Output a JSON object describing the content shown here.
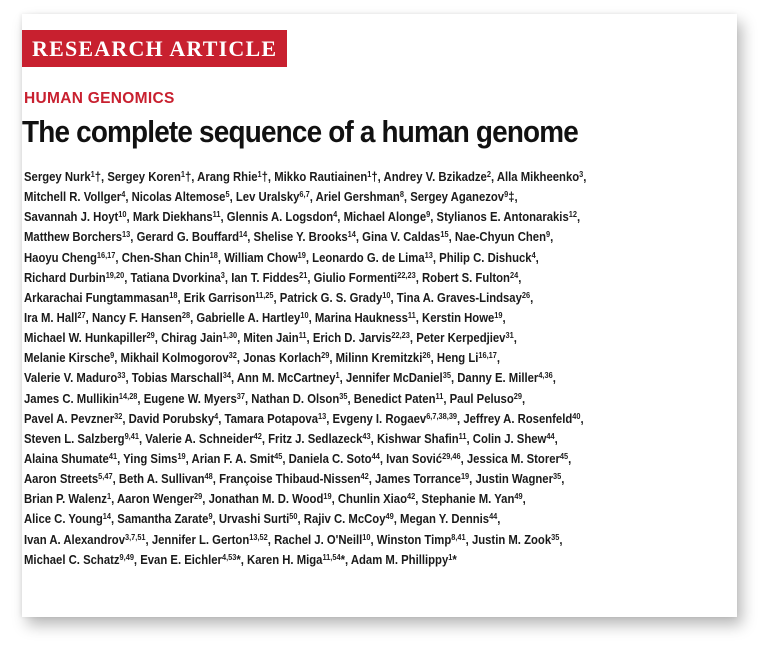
{
  "banner": "RESEARCH ARTICLE",
  "section": "HUMAN GENOMICS",
  "title": "The complete sequence of a human genome",
  "author_lines": [
    [
      {
        "name": "Sergey Nurk",
        "sup": "1",
        "mark": "†"
      },
      {
        "name": "Sergey Koren",
        "sup": "1",
        "mark": "†"
      },
      {
        "name": "Arang Rhie",
        "sup": "1",
        "mark": "†"
      },
      {
        "name": "Mikko Rautiainen",
        "sup": "1",
        "mark": "†"
      },
      {
        "name": "Andrey V. Bzikadze",
        "sup": "2"
      },
      {
        "name": "Alla Mikheenko",
        "sup": "3"
      }
    ],
    [
      {
        "name": "Mitchell R. Vollger",
        "sup": "4"
      },
      {
        "name": "Nicolas Altemose",
        "sup": "5"
      },
      {
        "name": "Lev Uralsky",
        "sup": "6,7"
      },
      {
        "name": "Ariel Gershman",
        "sup": "8"
      },
      {
        "name": "Sergey Aganezov",
        "sup": "9",
        "mark": "‡"
      }
    ],
    [
      {
        "name": "Savannah J. Hoyt",
        "sup": "10"
      },
      {
        "name": "Mark Diekhans",
        "sup": "11"
      },
      {
        "name": "Glennis A. Logsdon",
        "sup": "4"
      },
      {
        "name": "Michael Alonge",
        "sup": "9"
      },
      {
        "name": "Stylianos E. Antonarakis",
        "sup": "12"
      }
    ],
    [
      {
        "name": "Matthew Borchers",
        "sup": "13"
      },
      {
        "name": "Gerard G. Bouffard",
        "sup": "14"
      },
      {
        "name": "Shelise Y. Brooks",
        "sup": "14"
      },
      {
        "name": "Gina V. Caldas",
        "sup": "15"
      },
      {
        "name": "Nae-Chyun Chen",
        "sup": "9"
      }
    ],
    [
      {
        "name": "Haoyu Cheng",
        "sup": "16,17"
      },
      {
        "name": "Chen-Shan Chin",
        "sup": "18"
      },
      {
        "name": "William Chow",
        "sup": "19"
      },
      {
        "name": "Leonardo G. de Lima",
        "sup": "13"
      },
      {
        "name": "Philip C. Dishuck",
        "sup": "4"
      }
    ],
    [
      {
        "name": "Richard Durbin",
        "sup": "19,20"
      },
      {
        "name": "Tatiana Dvorkina",
        "sup": "3"
      },
      {
        "name": "Ian T. Fiddes",
        "sup": "21"
      },
      {
        "name": "Giulio Formenti",
        "sup": "22,23"
      },
      {
        "name": "Robert S. Fulton",
        "sup": "24"
      }
    ],
    [
      {
        "name": "Arkarachai Fungtammasan",
        "sup": "18"
      },
      {
        "name": "Erik Garrison",
        "sup": "11,25"
      },
      {
        "name": "Patrick G. S. Grady",
        "sup": "10"
      },
      {
        "name": "Tina A. Graves-Lindsay",
        "sup": "26"
      }
    ],
    [
      {
        "name": "Ira M. Hall",
        "sup": "27"
      },
      {
        "name": "Nancy F. Hansen",
        "sup": "28"
      },
      {
        "name": "Gabrielle A. Hartley",
        "sup": "10"
      },
      {
        "name": "Marina Haukness",
        "sup": "11"
      },
      {
        "name": "Kerstin Howe",
        "sup": "19"
      }
    ],
    [
      {
        "name": "Michael W. Hunkapiller",
        "sup": "29"
      },
      {
        "name": "Chirag Jain",
        "sup": "1,30"
      },
      {
        "name": "Miten Jain",
        "sup": "11"
      },
      {
        "name": "Erich D. Jarvis",
        "sup": "22,23"
      },
      {
        "name": "Peter Kerpedjiev",
        "sup": "31"
      }
    ],
    [
      {
        "name": "Melanie Kirsche",
        "sup": "9"
      },
      {
        "name": "Mikhail Kolmogorov",
        "sup": "32"
      },
      {
        "name": "Jonas Korlach",
        "sup": "29"
      },
      {
        "name": "Milinn Kremitzki",
        "sup": "26"
      },
      {
        "name": "Heng Li",
        "sup": "16,17"
      }
    ],
    [
      {
        "name": "Valerie V. Maduro",
        "sup": "33"
      },
      {
        "name": "Tobias Marschall",
        "sup": "34"
      },
      {
        "name": "Ann M. McCartney",
        "sup": "1"
      },
      {
        "name": "Jennifer McDaniel",
        "sup": "35"
      },
      {
        "name": "Danny E. Miller",
        "sup": "4,36"
      }
    ],
    [
      {
        "name": "James C. Mullikin",
        "sup": "14,28"
      },
      {
        "name": "Eugene W. Myers",
        "sup": "37"
      },
      {
        "name": "Nathan D. Olson",
        "sup": "35"
      },
      {
        "name": "Benedict Paten",
        "sup": "11"
      },
      {
        "name": "Paul Peluso",
        "sup": "29"
      }
    ],
    [
      {
        "name": "Pavel A. Pevzner",
        "sup": "32"
      },
      {
        "name": "David Porubsky",
        "sup": "4"
      },
      {
        "name": "Tamara Potapova",
        "sup": "13"
      },
      {
        "name": "Evgeny I. Rogaev",
        "sup": "6,7,38,39"
      },
      {
        "name": "Jeffrey A. Rosenfeld",
        "sup": "40"
      }
    ],
    [
      {
        "name": "Steven L. Salzberg",
        "sup": "9,41"
      },
      {
        "name": "Valerie A. Schneider",
        "sup": "42"
      },
      {
        "name": "Fritz J. Sedlazeck",
        "sup": "43"
      },
      {
        "name": "Kishwar Shafin",
        "sup": "11"
      },
      {
        "name": "Colin J. Shew",
        "sup": "44"
      }
    ],
    [
      {
        "name": "Alaina Shumate",
        "sup": "41"
      },
      {
        "name": "Ying Sims",
        "sup": "19"
      },
      {
        "name": "Arian F. A. Smit",
        "sup": "45"
      },
      {
        "name": "Daniela C. Soto",
        "sup": "44"
      },
      {
        "name": "Ivan Sović",
        "sup": "29,46"
      },
      {
        "name": "Jessica M. Storer",
        "sup": "45"
      }
    ],
    [
      {
        "name": "Aaron Streets",
        "sup": "5,47"
      },
      {
        "name": "Beth A. Sullivan",
        "sup": "48"
      },
      {
        "name": "Françoise Thibaud-Nissen",
        "sup": "42"
      },
      {
        "name": "James Torrance",
        "sup": "19"
      },
      {
        "name": "Justin Wagner",
        "sup": "35"
      }
    ],
    [
      {
        "name": "Brian P. Walenz",
        "sup": "1"
      },
      {
        "name": "Aaron Wenger",
        "sup": "29"
      },
      {
        "name": "Jonathan M. D. Wood",
        "sup": "19"
      },
      {
        "name": "Chunlin Xiao",
        "sup": "42"
      },
      {
        "name": "Stephanie M. Yan",
        "sup": "49"
      }
    ],
    [
      {
        "name": "Alice C. Young",
        "sup": "14"
      },
      {
        "name": "Samantha Zarate",
        "sup": "9"
      },
      {
        "name": "Urvashi Surti",
        "sup": "50"
      },
      {
        "name": "Rajiv C. McCoy",
        "sup": "49"
      },
      {
        "name": "Megan Y. Dennis",
        "sup": "44"
      }
    ],
    [
      {
        "name": "Ivan A. Alexandrov",
        "sup": "3,7,51"
      },
      {
        "name": "Jennifer L. Gerton",
        "sup": "13,52"
      },
      {
        "name": "Rachel J. O'Neill",
        "sup": "10"
      },
      {
        "name": "Winston Timp",
        "sup": "8,41"
      },
      {
        "name": "Justin M. Zook",
        "sup": "35"
      }
    ],
    [
      {
        "name": "Michael C. Schatz",
        "sup": "9,49"
      },
      {
        "name": "Evan E. Eichler",
        "sup": "4,53",
        "mark": "*"
      },
      {
        "name": "Karen H. Miga",
        "sup": "11,54",
        "mark": "*"
      },
      {
        "name": "Adam M. Phillippy",
        "sup": "1",
        "mark": "*"
      }
    ]
  ]
}
